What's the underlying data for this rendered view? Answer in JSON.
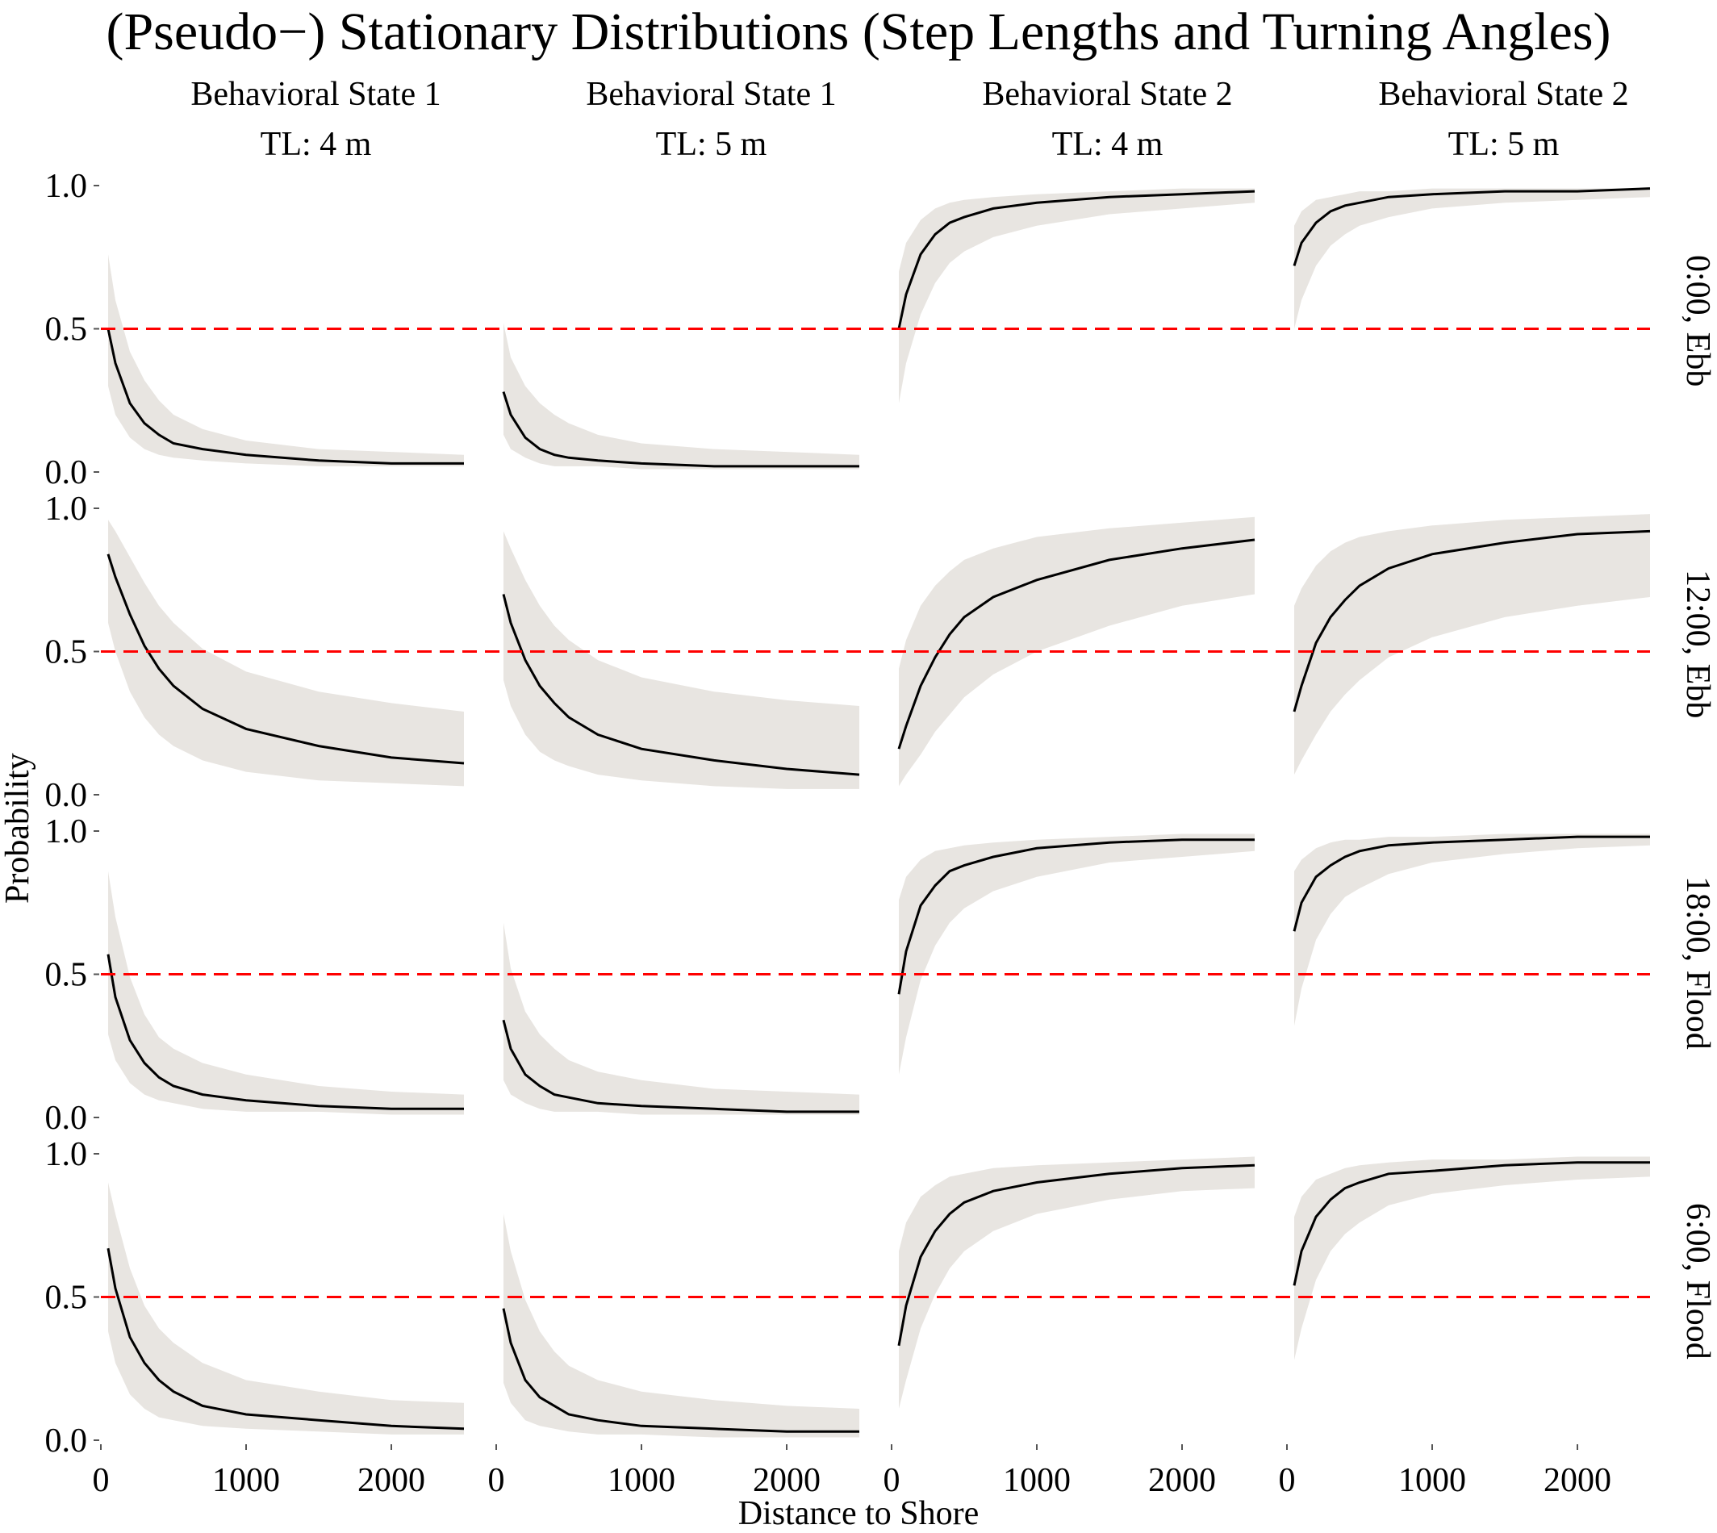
{
  "title": "(Pseudo−) Stationary Distributions (Step Lengths and Turning Angles)",
  "xlabel": "Distance to Shore",
  "ylabel": "Probability",
  "columns": [
    {
      "state": "Behavioral State 1",
      "tl": "TL: 4 m"
    },
    {
      "state": "Behavioral State 1",
      "tl": "TL: 5 m"
    },
    {
      "state": "Behavioral State 2",
      "tl": "TL: 4 m"
    },
    {
      "state": "Behavioral State 2",
      "tl": "TL: 5 m"
    }
  ],
  "rows": [
    "0:00, Ebb",
    "12:00, Ebb",
    "18:00, Flood",
    "6:00, Flood"
  ],
  "colors": {
    "line": "#000000",
    "band": "#e8e5e1",
    "reference": "#ff0000"
  },
  "chart_data": {
    "type": "line",
    "layout": "facet grid 4x4",
    "x_ticks": [
      0,
      1000,
      2000
    ],
    "y_ticks": [
      "0.0",
      "0.5",
      "1.0"
    ],
    "xlim": [
      0,
      2500
    ],
    "ylim": [
      0,
      1
    ],
    "reference_line": {
      "y": 0.5,
      "style": "dashed",
      "color": "#ff0000"
    },
    "x": [
      50,
      100,
      200,
      300,
      400,
      500,
      700,
      1000,
      1500,
      2000,
      2500
    ],
    "panels": [
      {
        "row": "0:00, Ebb",
        "col": "Behavioral State 1 / TL: 4 m",
        "mean": [
          0.5,
          0.38,
          0.24,
          0.17,
          0.13,
          0.1,
          0.08,
          0.06,
          0.04,
          0.03,
          0.03
        ],
        "lower": [
          0.3,
          0.2,
          0.12,
          0.08,
          0.06,
          0.05,
          0.04,
          0.03,
          0.02,
          0.02,
          0.02
        ],
        "upper": [
          0.76,
          0.6,
          0.42,
          0.32,
          0.25,
          0.2,
          0.15,
          0.11,
          0.08,
          0.07,
          0.06
        ]
      },
      {
        "row": "0:00, Ebb",
        "col": "Behavioral State 1 / TL: 5 m",
        "mean": [
          0.28,
          0.2,
          0.12,
          0.08,
          0.06,
          0.05,
          0.04,
          0.03,
          0.02,
          0.02,
          0.02
        ],
        "lower": [
          0.13,
          0.08,
          0.05,
          0.03,
          0.02,
          0.02,
          0.02,
          0.01,
          0.01,
          0.01,
          0.01
        ],
        "upper": [
          0.52,
          0.4,
          0.3,
          0.24,
          0.2,
          0.17,
          0.13,
          0.1,
          0.08,
          0.07,
          0.06
        ]
      },
      {
        "row": "0:00, Ebb",
        "col": "Behavioral State 2 / TL: 4 m",
        "mean": [
          0.5,
          0.62,
          0.76,
          0.83,
          0.87,
          0.89,
          0.92,
          0.94,
          0.96,
          0.97,
          0.98
        ],
        "lower": [
          0.24,
          0.38,
          0.55,
          0.66,
          0.73,
          0.77,
          0.82,
          0.86,
          0.9,
          0.92,
          0.94
        ],
        "upper": [
          0.7,
          0.8,
          0.88,
          0.92,
          0.94,
          0.95,
          0.96,
          0.97,
          0.98,
          0.99,
          0.99
        ]
      },
      {
        "row": "0:00, Ebb",
        "col": "Behavioral State 2 / TL: 5 m",
        "mean": [
          0.72,
          0.8,
          0.87,
          0.91,
          0.93,
          0.94,
          0.96,
          0.97,
          0.98,
          0.98,
          0.99
        ],
        "lower": [
          0.5,
          0.6,
          0.72,
          0.79,
          0.83,
          0.86,
          0.89,
          0.92,
          0.94,
          0.95,
          0.96
        ],
        "upper": [
          0.86,
          0.91,
          0.95,
          0.96,
          0.97,
          0.98,
          0.98,
          0.99,
          0.99,
          0.99,
          0.99
        ]
      },
      {
        "row": "12:00, Ebb",
        "col": "Behavioral State 1 / TL: 4 m",
        "mean": [
          0.84,
          0.76,
          0.63,
          0.52,
          0.44,
          0.38,
          0.3,
          0.23,
          0.17,
          0.13,
          0.11
        ],
        "lower": [
          0.6,
          0.5,
          0.36,
          0.27,
          0.21,
          0.17,
          0.12,
          0.08,
          0.05,
          0.04,
          0.03
        ],
        "upper": [
          0.96,
          0.92,
          0.83,
          0.74,
          0.66,
          0.6,
          0.51,
          0.43,
          0.36,
          0.32,
          0.29
        ]
      },
      {
        "row": "12:00, Ebb",
        "col": "Behavioral State 1 / TL: 5 m",
        "mean": [
          0.7,
          0.6,
          0.47,
          0.38,
          0.32,
          0.27,
          0.21,
          0.16,
          0.12,
          0.09,
          0.07
        ],
        "lower": [
          0.4,
          0.31,
          0.21,
          0.15,
          0.12,
          0.1,
          0.07,
          0.05,
          0.03,
          0.02,
          0.02
        ],
        "upper": [
          0.92,
          0.86,
          0.75,
          0.66,
          0.59,
          0.54,
          0.47,
          0.41,
          0.36,
          0.33,
          0.31
        ]
      },
      {
        "row": "12:00, Ebb",
        "col": "Behavioral State 2 / TL: 4 m",
        "mean": [
          0.16,
          0.24,
          0.38,
          0.48,
          0.56,
          0.62,
          0.69,
          0.75,
          0.82,
          0.86,
          0.89
        ],
        "lower": [
          0.03,
          0.07,
          0.14,
          0.22,
          0.28,
          0.34,
          0.42,
          0.5,
          0.59,
          0.66,
          0.7
        ],
        "upper": [
          0.44,
          0.54,
          0.66,
          0.73,
          0.78,
          0.82,
          0.86,
          0.9,
          0.93,
          0.95,
          0.97
        ]
      },
      {
        "row": "12:00, Ebb",
        "col": "Behavioral State 2 / TL: 5 m",
        "mean": [
          0.29,
          0.38,
          0.53,
          0.62,
          0.68,
          0.73,
          0.79,
          0.84,
          0.88,
          0.91,
          0.92
        ],
        "lower": [
          0.07,
          0.12,
          0.21,
          0.29,
          0.35,
          0.4,
          0.48,
          0.55,
          0.62,
          0.66,
          0.69
        ],
        "upper": [
          0.66,
          0.72,
          0.8,
          0.85,
          0.88,
          0.9,
          0.92,
          0.94,
          0.96,
          0.97,
          0.98
        ]
      },
      {
        "row": "18:00, Flood",
        "col": "Behavioral State 1 / TL: 4 m",
        "mean": [
          0.57,
          0.42,
          0.27,
          0.19,
          0.14,
          0.11,
          0.08,
          0.06,
          0.04,
          0.03,
          0.03
        ],
        "lower": [
          0.29,
          0.2,
          0.12,
          0.08,
          0.06,
          0.05,
          0.03,
          0.02,
          0.02,
          0.01,
          0.01
        ],
        "upper": [
          0.86,
          0.7,
          0.49,
          0.36,
          0.28,
          0.24,
          0.19,
          0.15,
          0.11,
          0.09,
          0.08
        ]
      },
      {
        "row": "18:00, Flood",
        "col": "Behavioral State 1 / TL: 5 m",
        "mean": [
          0.34,
          0.24,
          0.15,
          0.11,
          0.08,
          0.07,
          0.05,
          0.04,
          0.03,
          0.02,
          0.02
        ],
        "lower": [
          0.13,
          0.08,
          0.05,
          0.03,
          0.02,
          0.02,
          0.02,
          0.01,
          0.01,
          0.01,
          0.01
        ],
        "upper": [
          0.68,
          0.52,
          0.37,
          0.29,
          0.24,
          0.2,
          0.16,
          0.13,
          0.1,
          0.09,
          0.08
        ]
      },
      {
        "row": "18:00, Flood",
        "col": "Behavioral State 2 / TL: 4 m",
        "mean": [
          0.43,
          0.58,
          0.74,
          0.81,
          0.86,
          0.88,
          0.91,
          0.94,
          0.96,
          0.97,
          0.97
        ],
        "lower": [
          0.15,
          0.28,
          0.48,
          0.6,
          0.68,
          0.73,
          0.79,
          0.84,
          0.89,
          0.91,
          0.93
        ],
        "upper": [
          0.76,
          0.84,
          0.9,
          0.93,
          0.94,
          0.95,
          0.96,
          0.97,
          0.98,
          0.99,
          0.99
        ]
      },
      {
        "row": "18:00, Flood",
        "col": "Behavioral State 2 / TL: 5 m",
        "mean": [
          0.65,
          0.75,
          0.84,
          0.88,
          0.91,
          0.93,
          0.95,
          0.96,
          0.97,
          0.98,
          0.98
        ],
        "lower": [
          0.32,
          0.45,
          0.62,
          0.71,
          0.77,
          0.8,
          0.85,
          0.89,
          0.92,
          0.94,
          0.95
        ],
        "upper": [
          0.86,
          0.9,
          0.94,
          0.96,
          0.97,
          0.97,
          0.98,
          0.98,
          0.99,
          0.99,
          0.99
        ]
      },
      {
        "row": "6:00, Flood",
        "col": "Behavioral State 1 / TL: 4 m",
        "mean": [
          0.67,
          0.53,
          0.36,
          0.27,
          0.21,
          0.17,
          0.12,
          0.09,
          0.07,
          0.05,
          0.04
        ],
        "lower": [
          0.38,
          0.27,
          0.16,
          0.11,
          0.08,
          0.07,
          0.05,
          0.04,
          0.03,
          0.02,
          0.02
        ],
        "upper": [
          0.9,
          0.79,
          0.6,
          0.47,
          0.39,
          0.34,
          0.27,
          0.21,
          0.17,
          0.14,
          0.13
        ]
      },
      {
        "row": "6:00, Flood",
        "col": "Behavioral State 1 / TL: 5 m",
        "mean": [
          0.46,
          0.34,
          0.21,
          0.15,
          0.12,
          0.09,
          0.07,
          0.05,
          0.04,
          0.03,
          0.03
        ],
        "lower": [
          0.2,
          0.13,
          0.07,
          0.05,
          0.04,
          0.03,
          0.02,
          0.02,
          0.01,
          0.01,
          0.01
        ],
        "upper": [
          0.79,
          0.66,
          0.49,
          0.38,
          0.31,
          0.26,
          0.21,
          0.17,
          0.14,
          0.12,
          0.11
        ]
      },
      {
        "row": "6:00, Flood",
        "col": "Behavioral State 2 / TL: 4 m",
        "mean": [
          0.33,
          0.47,
          0.64,
          0.73,
          0.79,
          0.83,
          0.87,
          0.9,
          0.93,
          0.95,
          0.96
        ],
        "lower": [
          0.11,
          0.21,
          0.39,
          0.51,
          0.6,
          0.66,
          0.73,
          0.79,
          0.84,
          0.87,
          0.88
        ],
        "upper": [
          0.66,
          0.76,
          0.85,
          0.89,
          0.92,
          0.93,
          0.95,
          0.96,
          0.97,
          0.98,
          0.99
        ]
      },
      {
        "row": "6:00, Flood",
        "col": "Behavioral State 2 / TL: 5 m",
        "mean": [
          0.54,
          0.66,
          0.78,
          0.84,
          0.88,
          0.9,
          0.93,
          0.94,
          0.96,
          0.97,
          0.97
        ],
        "lower": [
          0.28,
          0.39,
          0.56,
          0.66,
          0.72,
          0.76,
          0.82,
          0.86,
          0.89,
          0.91,
          0.92
        ],
        "upper": [
          0.78,
          0.85,
          0.91,
          0.93,
          0.95,
          0.96,
          0.97,
          0.98,
          0.98,
          0.99,
          0.99
        ]
      }
    ]
  }
}
